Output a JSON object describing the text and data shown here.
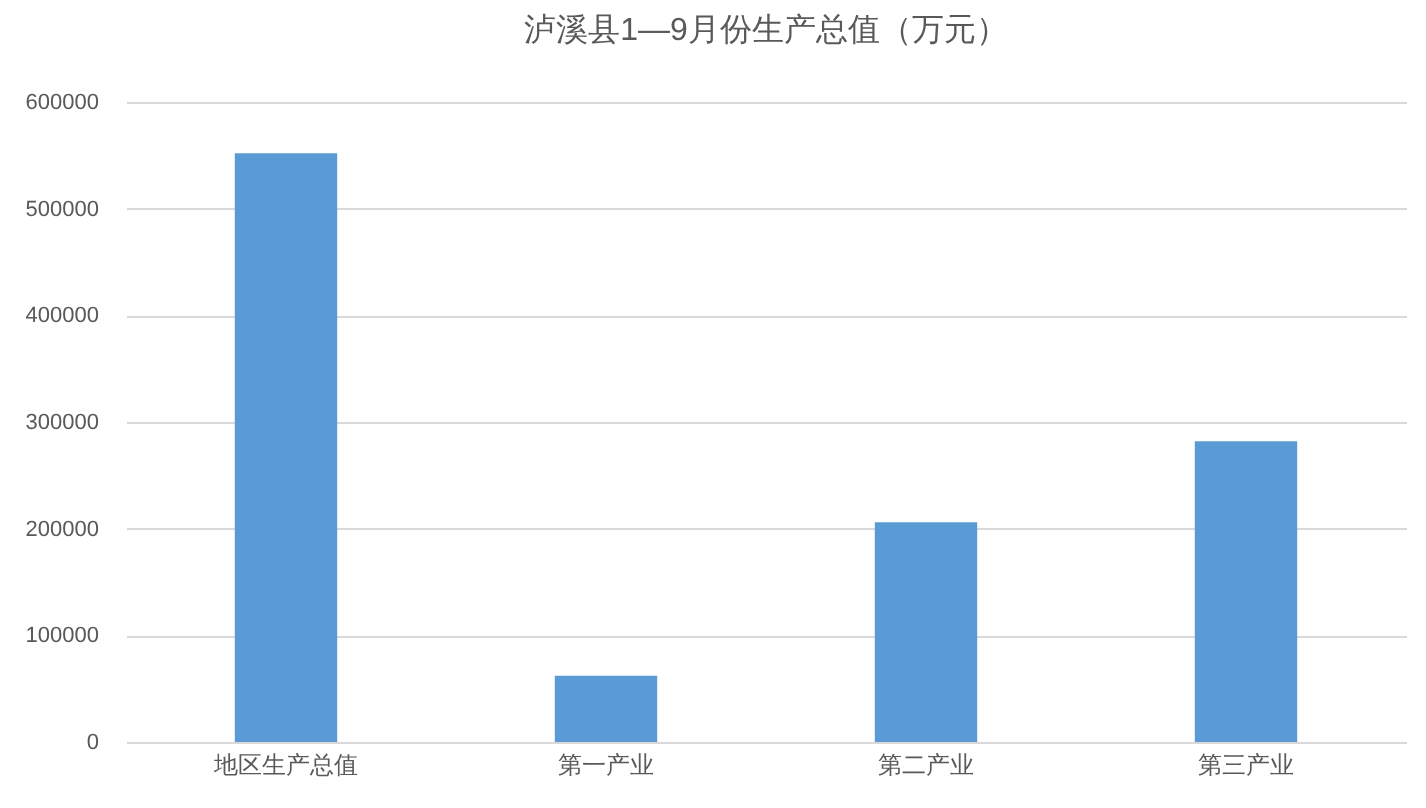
{
  "chart_data": {
    "type": "bar",
    "title": "泸溪县1—9月份生产总值（万元）",
    "categories": [
      "地区生产总值",
      "第一产业",
      "第二产业",
      "第三产业"
    ],
    "values": [
      552000,
      62000,
      206000,
      282000
    ],
    "color": "#5b9bd5",
    "ylim": [
      0,
      600000
    ],
    "yticks": [
      0,
      100000,
      200000,
      300000,
      400000,
      500000,
      600000
    ],
    "grid": "y"
  }
}
